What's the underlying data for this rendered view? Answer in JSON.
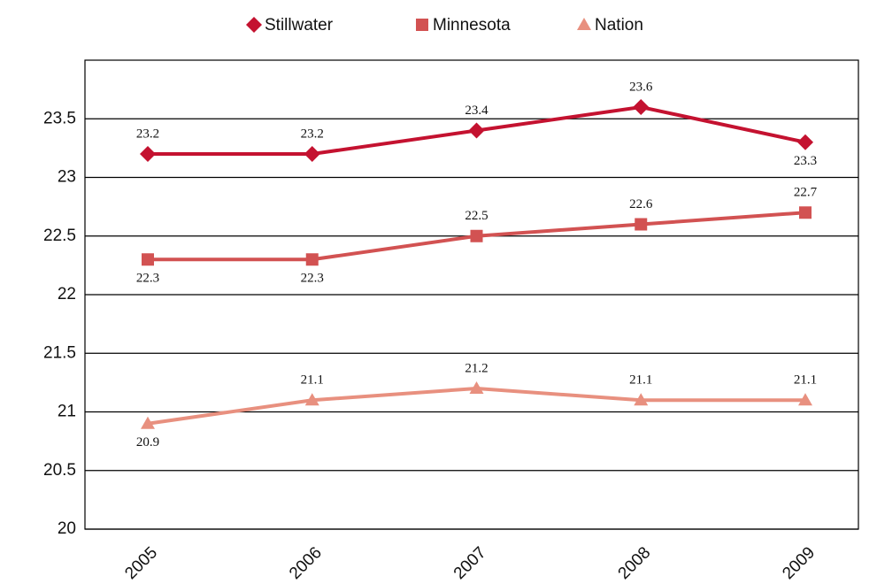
{
  "chart_data": {
    "type": "line",
    "categories": [
      "2005",
      "2006",
      "2007",
      "2008",
      "2009"
    ],
    "series": [
      {
        "name": "Stillwater",
        "color": "#c41230",
        "marker": "diamond",
        "values": [
          23.2,
          23.2,
          23.4,
          23.6,
          23.3
        ]
      },
      {
        "name": "Minnesota",
        "color": "#d25252",
        "marker": "square",
        "values": [
          22.3,
          22.3,
          22.5,
          22.6,
          22.7
        ]
      },
      {
        "name": "Nation",
        "color": "#e8907f",
        "marker": "triangle",
        "values": [
          20.9,
          21.1,
          21.2,
          21.1,
          21.1
        ]
      }
    ],
    "ylim": [
      20,
      24
    ],
    "yticks": [
      20,
      20.5,
      21,
      21.5,
      22,
      22.5,
      23,
      23.5
    ],
    "grid": true,
    "legend": "top"
  }
}
